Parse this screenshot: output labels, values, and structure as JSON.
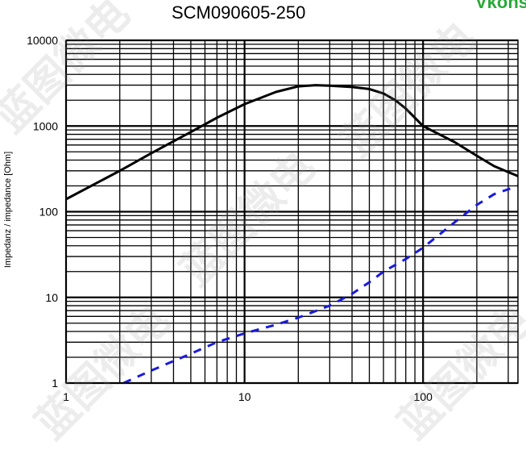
{
  "title": "SCM090605-250",
  "brand": {
    "text": "Vkons",
    "color": "#2aa838"
  },
  "watermark": "蓝图微电",
  "chart_data": {
    "type": "line",
    "title": "SCM090605-250",
    "xlabel": "",
    "ylabel": "Impedanz / impedance [Ohm]",
    "x_scale": "log",
    "y_scale": "log",
    "xlim": [
      1,
      340
    ],
    "ylim": [
      1,
      10000
    ],
    "grid": true,
    "x_ticks": [
      "1",
      "10",
      "100"
    ],
    "y_ticks": [
      "1",
      "10",
      "100",
      "1000",
      "10000"
    ],
    "series": [
      {
        "style": "solid",
        "color": "#000000",
        "x": [
          1,
          2,
          3,
          5,
          7,
          10,
          15,
          20,
          25,
          30,
          40,
          50,
          60,
          70,
          80,
          100,
          150,
          200,
          250,
          340
        ],
        "y": [
          140,
          300,
          480,
          850,
          1250,
          1800,
          2500,
          2900,
          3000,
          2950,
          2850,
          2700,
          2400,
          2000,
          1600,
          1000,
          650,
          450,
          340,
          260
        ]
      },
      {
        "style": "dashed",
        "color": "#1a1adc",
        "x": [
          2.1,
          3,
          5,
          7,
          10,
          15,
          20,
          30,
          40,
          50,
          60,
          70,
          80,
          100,
          150,
          200,
          250,
          340
        ],
        "y": [
          1,
          1.4,
          2.2,
          3,
          3.8,
          4.8,
          5.8,
          8,
          11,
          15,
          20,
          24,
          28,
          38,
          75,
          120,
          160,
          200
        ]
      }
    ]
  }
}
